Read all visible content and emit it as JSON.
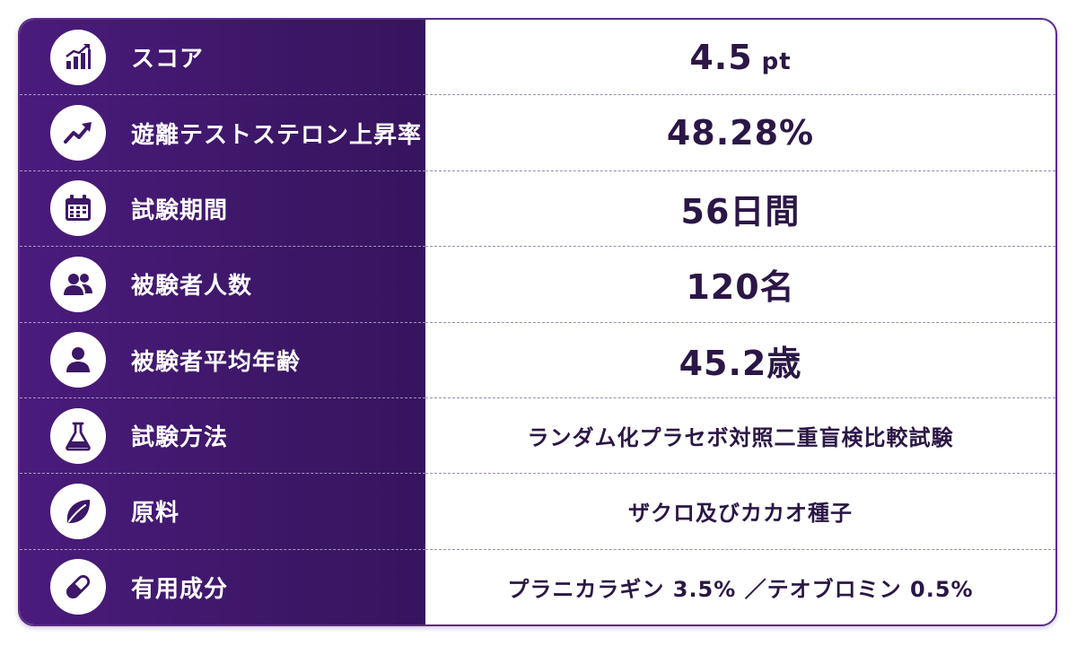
{
  "rows": [
    {
      "label": "スコア",
      "value": "4.5",
      "unit": "pt",
      "icon": "bar-chart-up-icon"
    },
    {
      "label": "遊離テストステロン上昇率",
      "value": "48.28%",
      "icon": "trend-up-icon"
    },
    {
      "label": "試験期間",
      "value": "56日間",
      "icon": "calendar-icon"
    },
    {
      "label": "被験者人数",
      "value": "120名",
      "icon": "people-icon"
    },
    {
      "label": "被験者平均年齢",
      "value": "45.2歳",
      "icon": "person-icon"
    },
    {
      "label": "試験方法",
      "value": "ランダム化プラセボ対照二重盲検比較試験",
      "icon": "flask-icon"
    },
    {
      "label": "原料",
      "value": "ザクロ及びカカオ種子",
      "icon": "leaf-icon"
    },
    {
      "label": "有用成分",
      "value": "プラニカラギン 3.5% ／テオブロミン 0.5%",
      "icon": "capsule-icon"
    }
  ],
  "colors": {
    "left_bg": "#3d1768",
    "value_text": "#2b1746",
    "icon_fill": "#3d1768"
  }
}
